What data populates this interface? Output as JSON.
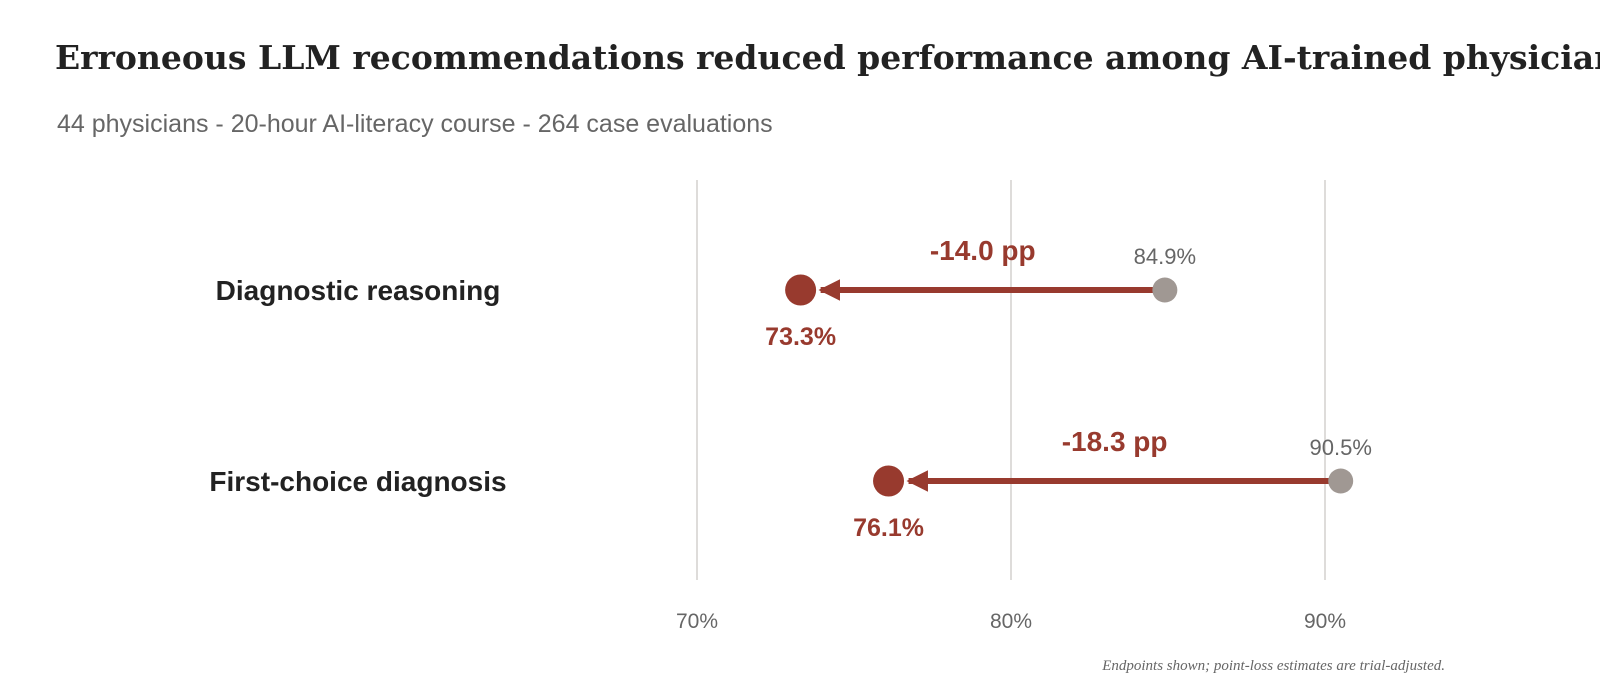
{
  "title": "Erroneous LLM recommendations reduced performance among AI-trained physicians",
  "subtitle": "44 physicians - 20-hour AI-literacy course - 264 case evaluations",
  "footnote": "Endpoints shown; point-loss estimates are trial-adjusted.",
  "colors": {
    "before": "#a09893",
    "after": "#983a2e",
    "grid": "#d4d0ce",
    "tick_text": "#666666",
    "category_text": "#222222"
  },
  "chart_data": {
    "type": "dumbbell",
    "xlim": [
      70,
      90
    ],
    "x_ticks": [
      70,
      80,
      90
    ],
    "x_tick_labels": [
      "70%",
      "80%",
      "90%"
    ],
    "grid": true,
    "categories": [
      "Diagnostic reasoning",
      "First-choice diagnosis"
    ],
    "series": [
      {
        "values": [
          84.9,
          90.5
        ],
        "labels": [
          "84.9%",
          "90.5%"
        ]
      },
      {
        "values": [
          73.3,
          76.1
        ],
        "labels": [
          "73.3%",
          "76.1%"
        ]
      }
    ],
    "change_labels": [
      "-14.0 pp",
      "-18.3 pp"
    ]
  }
}
